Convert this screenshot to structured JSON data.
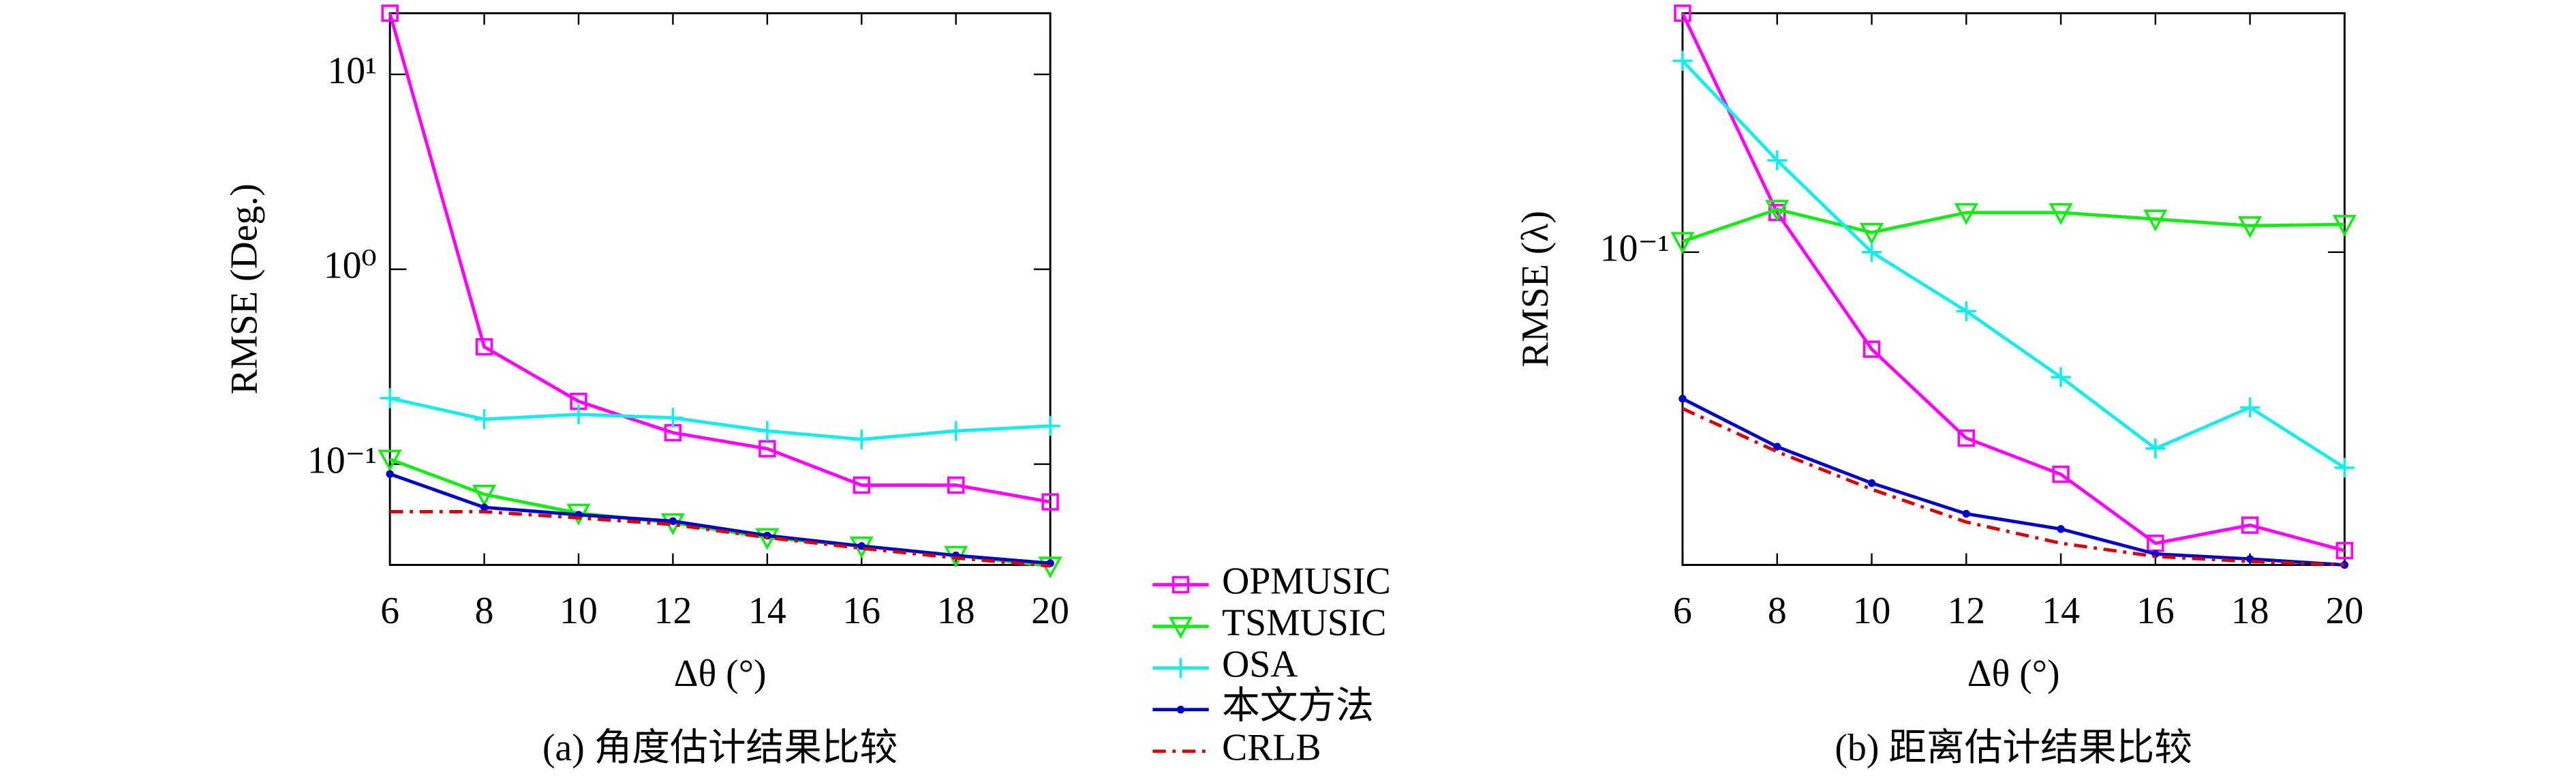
{
  "chart_data": [
    {
      "type": "line",
      "caption": "(a) 角度估计结果比较",
      "x_label": "Δθ (°)",
      "y_label": "RMSE (Deg.)",
      "log_y": true,
      "x": [
        6,
        8,
        10,
        12,
        14,
        16,
        18,
        20
      ],
      "xlim": [
        6,
        20
      ],
      "xticks": [
        6,
        8,
        10,
        12,
        14,
        16,
        18,
        20
      ],
      "ylim": [
        0.0304,
        20.6
      ],
      "yticks": [
        {
          "value": 0.1,
          "label": "10⁻¹"
        },
        {
          "value": 1,
          "label": "10⁰"
        },
        {
          "value": 10,
          "label": "10¹"
        }
      ],
      "series": [
        {
          "name": "OPMUSIC",
          "color": "#ff00ff",
          "marker": "square",
          "values": [
            20.6,
            0.4,
            0.21,
            0.145,
            0.12,
            0.078,
            0.078,
            0.064
          ]
        },
        {
          "name": "TSMUSIC",
          "color": "#11ee11",
          "marker": "triangle",
          "values": [
            0.106,
            0.07,
            0.056,
            0.05,
            0.042,
            0.038,
            0.034,
            0.03
          ]
        },
        {
          "name": "OSA",
          "color": "#11eeee",
          "marker": "plus",
          "values": [
            0.218,
            0.17,
            0.18,
            0.173,
            0.148,
            0.134,
            0.148,
            0.157
          ]
        },
        {
          "name": "本文方法",
          "color": "#0000cc",
          "marker": "dot",
          "values": [
            0.089,
            0.06,
            0.055,
            0.051,
            0.043,
            0.038,
            0.034,
            0.031
          ]
        },
        {
          "name": "CRLB",
          "color": "#dd0000",
          "dash": "8 4 2 4",
          "values": [
            0.057,
            0.057,
            0.053,
            0.049,
            0.042,
            0.037,
            0.033,
            0.03
          ]
        }
      ]
    },
    {
      "type": "line",
      "caption": "(b) 距离估计结果比较",
      "x_label": "Δθ (°)",
      "y_label": "RMSE (λ)",
      "log_y": true,
      "x": [
        6,
        8,
        10,
        12,
        14,
        16,
        18,
        20
      ],
      "xlim": [
        6,
        20
      ],
      "xticks": [
        6,
        8,
        10,
        12,
        14,
        16,
        18,
        20
      ],
      "ylim": [
        0.042,
        0.194
      ],
      "yticks": [
        {
          "value": 0.1,
          "label": "10⁻¹"
        }
      ],
      "series": [
        {
          "color": "#ff00ff",
          "marker": "square",
          "values": [
            0.194,
            0.1116,
            0.0764,
            0.0597,
            0.054,
            0.0446,
            0.0469,
            0.0437
          ]
        },
        {
          "color": "#11ee11",
          "marker": "triangle",
          "values": [
            0.103,
            0.1126,
            0.1056,
            0.1116,
            0.1116,
            0.1096,
            0.1076,
            0.108
          ]
        },
        {
          "color": "#11eeee",
          "marker": "plus",
          "values": [
            0.17,
            0.129,
            0.1,
            0.0849,
            0.0707,
            0.058,
            0.065,
            0.055
          ]
        },
        {
          "color": "#0000cc",
          "marker": "dot",
          "values": [
            0.0666,
            0.0583,
            0.0527,
            0.0484,
            0.0464,
            0.0433,
            0.0427,
            0.042
          ]
        },
        {
          "color": "#dd0000",
          "dash": "8 4 2 4",
          "values": [
            0.0648,
            0.0575,
            0.0518,
            0.0473,
            0.0446,
            0.043,
            0.0424,
            0.042
          ]
        }
      ]
    }
  ]
}
